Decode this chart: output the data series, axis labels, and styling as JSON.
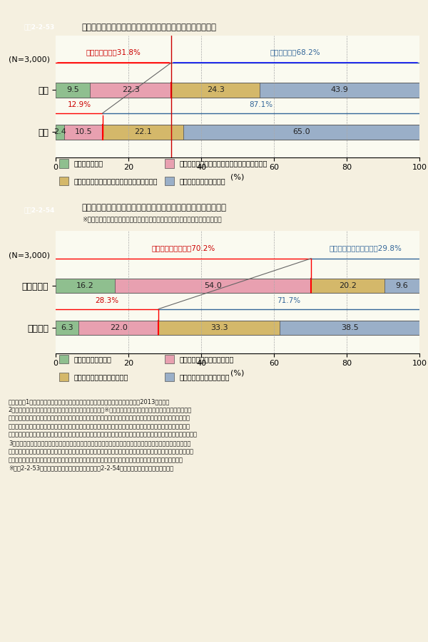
{
  "fig_width": 6.0,
  "fig_height": 9.01,
  "background_color": "#f5f0e0",
  "header_color": "#4a7c9e",
  "header_text_color": "#ffffff",
  "chart1": {
    "title_label": "図表2-2-53",
    "title_text": "ビッグデータの認知度は男性約３割、女性約１割にとどまる",
    "n_label": "(N=3,000)",
    "categories": [
      "男性",
      "女性"
    ],
    "values": [
      [
        9.5,
        22.3,
        24.3,
        43.9
      ],
      [
        2.4,
        10.5,
        22.1,
        65.0
      ]
    ],
    "colors": [
      "#8fbf8f",
      "#e8a0b0",
      "#d4b86a",
      "#9aafc8"
    ],
    "bar_border_color": "#333333",
    "annotation_know_male": "「知っている」31.8%",
    "annotation_know_female": "12.9%",
    "annotation_dontknow_male": "「知らない」68.2%",
    "annotation_dontknow_female": "87.1%",
    "know_line_male": 31.8,
    "know_line_female": 12.9,
    "legend_labels": [
      "よく知っている",
      "名前を聞いたことはあり、ある程度知っている",
      "名前を聞いたことはあるが、あまり知らない",
      "名前を聞いたことがない"
    ],
    "red_line_color": "#cc0000",
    "blue_annotation_color": "#336699"
  },
  "chart2": {
    "title_label": "図表2-2-54",
    "title_text": "ビッグデータの認知度によって、利活用への賛否は大きく異なる",
    "subtitle_text": "※利活用の際に「適切な個人情報保護措置が講じられること」を前提としている",
    "n_label": "(N=3,000)",
    "categories": [
      "知っている",
      "知らない"
    ],
    "values": [
      [
        16.2,
        54.0,
        20.2,
        9.6
      ],
      [
        6.3,
        22.0,
        33.3,
        38.5
      ]
    ],
    "colors": [
      "#8fbf8f",
      "#e8a0b0",
      "#d4b86a",
      "#9aafc8"
    ],
    "annotation_want_knowing": "「活用してほしい」70.2%",
    "annotation_want_notknowing": "28.3%",
    "annotation_dontwant_knowing": "「活用してほしくない」29.8%",
    "annotation_dontwant_notknowing": "71.7%",
    "want_line_knowing": 70.2,
    "want_line_notknowing": 28.3,
    "legend_labels": [
      "是非活用してほしい",
      "活用してもらっても構わない",
      "できれば活用してほしくない",
      "絶対に活用してほしくない"
    ],
    "red_line_color": "#cc0000",
    "blue_annotation_color": "#336699"
  },
  "notes": [
    "（備考）　1．消費者庁「インターネット調査「消費生活に関する意識調査」」（2013年度）。",
    "2．「あなたは「ビッグデータ」について知っていますか。※「ビッグデータ」とは、従来のデータベース管理シ",
    "　　ステムなどでは記録や保管、解析が難しいような巨大なデータ群。今までは管理しきれないため見逃ごされて",
    "　　きたそのようなデータ群を記録・保管して即座に解析することで、ビジネスや社会に有用な知見を得たり、こ",
    "　　れまでにないような新たな仕組みやシステムを産み出す可能性が高まるとされています。」との問に対する回答。",
    "3．「この「ビッグデータ」に関して、事業者があなた自身に関する様々な情報を集約してマーケティング等に活",
    "　　用したり、又は、個人を特定できない形に情報を加工して第三者に提供したりといった利活用が進んでいます。",
    "　　あなたは事業者が「ビッグデータ」を利活用することについてどう思いますか。」との問に対する回答。",
    "※図表2-2-53は備考２の問の回答のみを利用、図表2-2-54は備考２と３の問の回答を利用。"
  ]
}
